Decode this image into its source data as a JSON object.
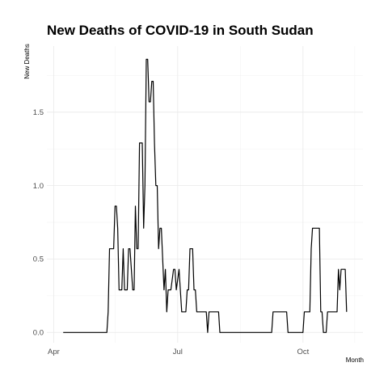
{
  "chart_data": {
    "type": "line",
    "title": "New Deaths of COVID-19 in South Sudan",
    "xlabel": "Month",
    "ylabel": "New Deaths",
    "x_axis": {
      "type": "date",
      "min": "2020-03-27",
      "max": "2020-11-14",
      "ticks": [
        {
          "date": "2020-04-01",
          "label": "Apr"
        },
        {
          "date": "2020-07-01",
          "label": "Jul"
        },
        {
          "date": "2020-10-01",
          "label": "Oct"
        }
      ],
      "minor_ticks": [
        "2020-05-16",
        "2020-08-16",
        "2020-11-08"
      ]
    },
    "y_axis": {
      "min": -0.07,
      "max": 1.95,
      "ticks": [
        0.0,
        0.5,
        1.0,
        1.5
      ],
      "tick_labels": [
        "0.0",
        "0.5",
        "1.0",
        "1.5"
      ],
      "minor_ticks": [
        0.25,
        0.75,
        1.25,
        1.75
      ]
    },
    "grid": true,
    "series": [
      {
        "color": "#000000",
        "x": [
          "2020-04-08",
          "2020-05-10",
          "2020-05-11",
          "2020-05-12",
          "2020-05-15",
          "2020-05-16",
          "2020-05-17",
          "2020-05-18",
          "2020-05-19",
          "2020-05-21",
          "2020-05-22",
          "2020-05-23",
          "2020-05-25",
          "2020-05-26",
          "2020-05-27",
          "2020-05-29",
          "2020-05-30",
          "2020-05-31",
          "2020-06-01",
          "2020-06-02",
          "2020-06-03",
          "2020-06-05",
          "2020-06-06",
          "2020-06-07",
          "2020-06-08",
          "2020-06-09",
          "2020-06-10",
          "2020-06-11",
          "2020-06-12",
          "2020-06-13",
          "2020-06-14",
          "2020-06-15",
          "2020-06-16",
          "2020-06-17",
          "2020-06-18",
          "2020-06-19",
          "2020-06-21",
          "2020-06-22",
          "2020-06-23",
          "2020-06-24",
          "2020-06-25",
          "2020-06-26",
          "2020-06-28",
          "2020-06-29",
          "2020-06-30",
          "2020-07-02",
          "2020-07-04",
          "2020-07-05",
          "2020-07-06",
          "2020-07-07",
          "2020-07-08",
          "2020-07-09",
          "2020-07-10",
          "2020-07-11",
          "2020-07-12",
          "2020-07-13",
          "2020-07-14",
          "2020-07-15",
          "2020-07-18",
          "2020-07-19",
          "2020-07-20",
          "2020-07-22",
          "2020-07-23",
          "2020-07-24",
          "2020-07-25",
          "2020-07-26",
          "2020-07-27",
          "2020-07-31",
          "2020-08-01",
          "2020-08-02",
          "2020-08-03",
          "2020-08-06",
          "2020-08-07",
          "2020-08-08",
          "2020-09-08",
          "2020-09-09",
          "2020-09-10",
          "2020-09-19",
          "2020-09-20",
          "2020-09-21",
          "2020-10-01",
          "2020-10-02",
          "2020-10-06",
          "2020-10-07",
          "2020-10-08",
          "2020-10-09",
          "2020-10-13",
          "2020-10-14",
          "2020-10-15",
          "2020-10-16",
          "2020-10-17",
          "2020-10-18",
          "2020-10-19",
          "2020-10-20",
          "2020-10-26",
          "2020-10-27",
          "2020-10-28",
          "2020-10-29",
          "2020-11-01",
          "2020-11-02"
        ],
        "y": [
          0,
          0,
          0.14,
          0.57,
          0.57,
          0.86,
          0.86,
          0.71,
          0.29,
          0.29,
          0.57,
          0.29,
          0.29,
          0.57,
          0.57,
          0.29,
          0.29,
          0.86,
          0.57,
          0.57,
          1.29,
          1.29,
          0.71,
          1.0,
          1.86,
          1.86,
          1.57,
          1.57,
          1.71,
          1.71,
          1.29,
          1.0,
          1.0,
          0.57,
          0.71,
          0.71,
          0.29,
          0.43,
          0.14,
          0.29,
          0.29,
          0.29,
          0.43,
          0.43,
          0.29,
          0.43,
          0.14,
          0.14,
          0.14,
          0.14,
          0.29,
          0.29,
          0.57,
          0.57,
          0.57,
          0.29,
          0.29,
          0.14,
          0.14,
          0.14,
          0.14,
          0.14,
          0,
          0.14,
          0.14,
          0.14,
          0.14,
          0.14,
          0,
          0,
          0,
          0,
          0,
          0,
          0,
          0.14,
          0.14,
          0.14,
          0,
          0,
          0,
          0.14,
          0.14,
          0.57,
          0.71,
          0.71,
          0.71,
          0.14,
          0.14,
          0,
          0,
          0,
          0.14,
          0.14,
          0.14,
          0.43,
          0.29,
          0.43,
          0.43,
          0.14
        ]
      }
    ]
  }
}
